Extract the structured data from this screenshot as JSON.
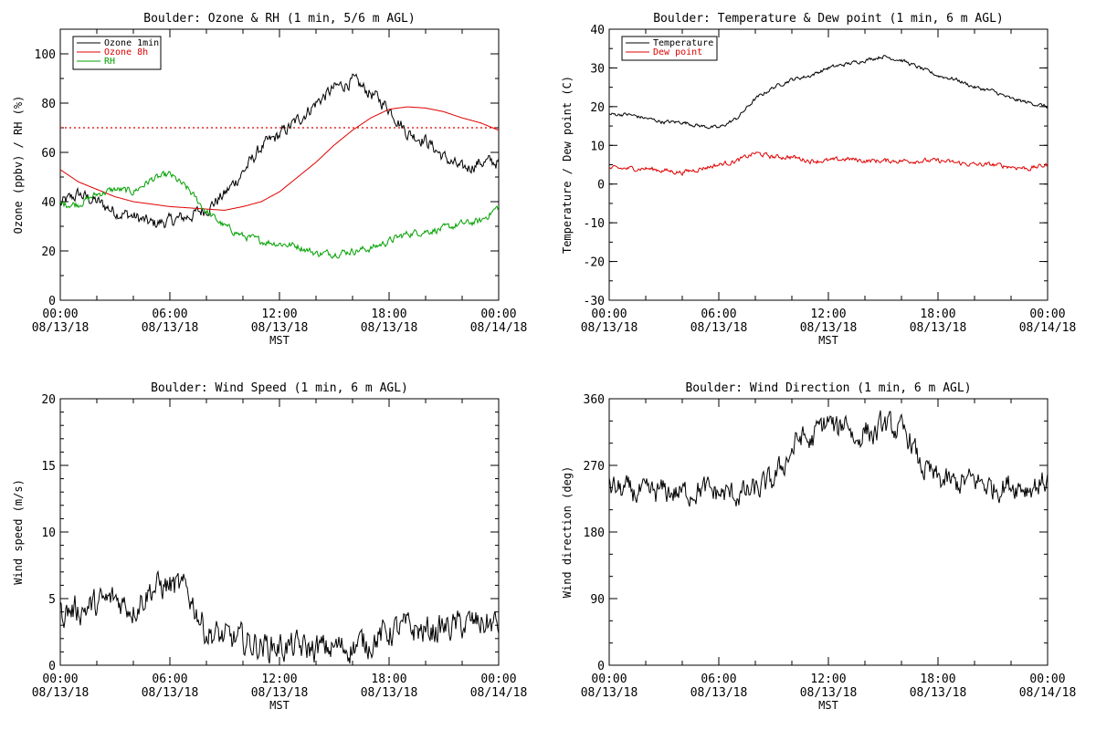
{
  "x_tick_labels": [
    [
      "00:00",
      "08/13/18"
    ],
    [
      "06:00",
      "08/13/18"
    ],
    [
      "12:00",
      "08/13/18"
    ],
    [
      "18:00",
      "08/13/18"
    ],
    [
      "00:00",
      "08/14/18"
    ]
  ],
  "x_axis_label": "MST",
  "chart_data": [
    {
      "type": "line",
      "title": "Boulder: Ozone & RH (1 min, 5/6 m AGL)",
      "ylabel": "Ozone (ppbv) / RH (%)",
      "xlim": [
        0,
        24
      ],
      "ylim": [
        0,
        110
      ],
      "yticks": [
        0,
        20,
        40,
        60,
        80,
        100
      ],
      "legend": "top-left",
      "reference_line": {
        "y": 70,
        "color": "#e00000",
        "style": "dotted"
      },
      "series": [
        {
          "name": "Ozone 1min",
          "color": "#000000",
          "x": [
            0,
            1,
            2,
            3,
            4,
            5,
            6,
            7,
            8,
            9,
            10,
            11,
            12,
            13,
            14,
            15,
            16,
            17,
            18,
            19,
            20,
            21,
            22,
            23,
            24
          ],
          "y": [
            39,
            43,
            40,
            36,
            34,
            31,
            32,
            34,
            37,
            43,
            52,
            62,
            67,
            73,
            80,
            86,
            89,
            84,
            78,
            68,
            65,
            58,
            53,
            56,
            56
          ]
        },
        {
          "name": "Ozone 8h",
          "color": "#e00000",
          "x": [
            0,
            1,
            2,
            3,
            4,
            5,
            6,
            7,
            8,
            9,
            10,
            11,
            12,
            13,
            14,
            15,
            16,
            17,
            18,
            19,
            20,
            21,
            22,
            23,
            24
          ],
          "y": [
            53,
            48,
            45,
            42,
            40,
            39,
            38,
            37.5,
            37,
            36.5,
            38,
            40,
            44,
            50,
            56,
            63,
            69,
            74,
            77.5,
            78.5,
            78,
            76.5,
            74,
            72,
            69
          ]
        },
        {
          "name": "RH",
          "color": "#00a000",
          "x": [
            0,
            1,
            2,
            3,
            4,
            5,
            6,
            7,
            8,
            9,
            10,
            11,
            12,
            13,
            14,
            15,
            16,
            17,
            18,
            19,
            20,
            21,
            22,
            23,
            24
          ],
          "y": [
            39,
            39,
            43,
            45,
            44,
            49,
            51,
            45,
            36,
            30,
            26,
            24,
            23,
            22,
            19,
            19,
            20,
            21,
            24,
            27,
            28,
            29,
            31,
            32,
            38
          ]
        }
      ]
    },
    {
      "type": "line",
      "title": "Boulder: Temperature & Dew point (1 min, 6 m AGL)",
      "ylabel": "Temperature / Dew point (C)",
      "xlim": [
        0,
        24
      ],
      "ylim": [
        -30,
        40
      ],
      "yticks": [
        -30,
        -20,
        -10,
        0,
        10,
        20,
        30,
        40
      ],
      "legend": "top-left",
      "series": [
        {
          "name": "Temperature",
          "color": "#000000",
          "x": [
            0,
            1,
            2,
            3,
            4,
            5,
            6,
            7,
            8,
            9,
            10,
            11,
            12,
            13,
            14,
            15,
            16,
            17,
            18,
            19,
            20,
            21,
            22,
            23,
            24
          ],
          "y": [
            18,
            18,
            17,
            16,
            16,
            15,
            14.5,
            17,
            22,
            25,
            27,
            28,
            30,
            31,
            32,
            33,
            32,
            30,
            28,
            27,
            25,
            24,
            22,
            21,
            20
          ]
        },
        {
          "name": "Dew point",
          "color": "#e00000",
          "x": [
            0,
            1,
            2,
            3,
            4,
            5,
            6,
            7,
            8,
            9,
            10,
            11,
            12,
            13,
            14,
            15,
            16,
            17,
            18,
            19,
            20,
            21,
            22,
            23,
            24
          ],
          "y": [
            4,
            4,
            4,
            3.5,
            3,
            4,
            5,
            6,
            8,
            7,
            7,
            6,
            6,
            6.5,
            6,
            6,
            6,
            6,
            6,
            5.5,
            5,
            5,
            4.5,
            4,
            5
          ]
        }
      ]
    },
    {
      "type": "line",
      "title": "Boulder: Wind Speed (1 min, 6 m AGL)",
      "ylabel": "Wind speed (m/s)",
      "xlim": [
        0,
        24
      ],
      "ylim": [
        0,
        20
      ],
      "yticks": [
        0,
        5,
        10,
        15,
        20
      ],
      "series": [
        {
          "color": "#000000",
          "x": [
            0,
            1,
            2,
            3,
            4,
            5,
            6,
            7,
            8,
            9,
            10,
            11,
            12,
            13,
            14,
            15,
            16,
            17,
            18,
            19,
            20,
            21,
            22,
            23,
            24
          ],
          "y": [
            4,
            4.2,
            4.5,
            5,
            4.3,
            5.8,
            6,
            5.5,
            2.5,
            2,
            1.8,
            1.5,
            1.4,
            1.3,
            1.2,
            1.3,
            1.4,
            1.8,
            2.5,
            2.8,
            2.5,
            2.8,
            3,
            3.2,
            3
          ]
        }
      ]
    },
    {
      "type": "line",
      "title": "Boulder: Wind Direction (1 min, 6 m AGL)",
      "ylabel": "Wind direction (deg)",
      "xlim": [
        0,
        24
      ],
      "ylim": [
        0,
        360
      ],
      "yticks": [
        0,
        90,
        180,
        270,
        360
      ],
      "series": [
        {
          "color": "#000000",
          "x": [
            0,
            1,
            2,
            3,
            4,
            5,
            6,
            7,
            8,
            9,
            10,
            10.5,
            11,
            11.5,
            12,
            12.5,
            13,
            13.5,
            14,
            14.5,
            15,
            15.5,
            16,
            16.5,
            17,
            18,
            19,
            20,
            21,
            22,
            23,
            24
          ],
          "y": [
            240,
            235,
            230,
            235,
            232,
            238,
            232,
            230,
            235,
            250,
            290,
            310,
            300,
            320,
            330,
            315,
            335,
            300,
            320,
            310,
            325,
            320,
            315,
            305,
            270,
            250,
            245,
            250,
            240,
            245,
            240,
            250
          ]
        }
      ]
    }
  ]
}
